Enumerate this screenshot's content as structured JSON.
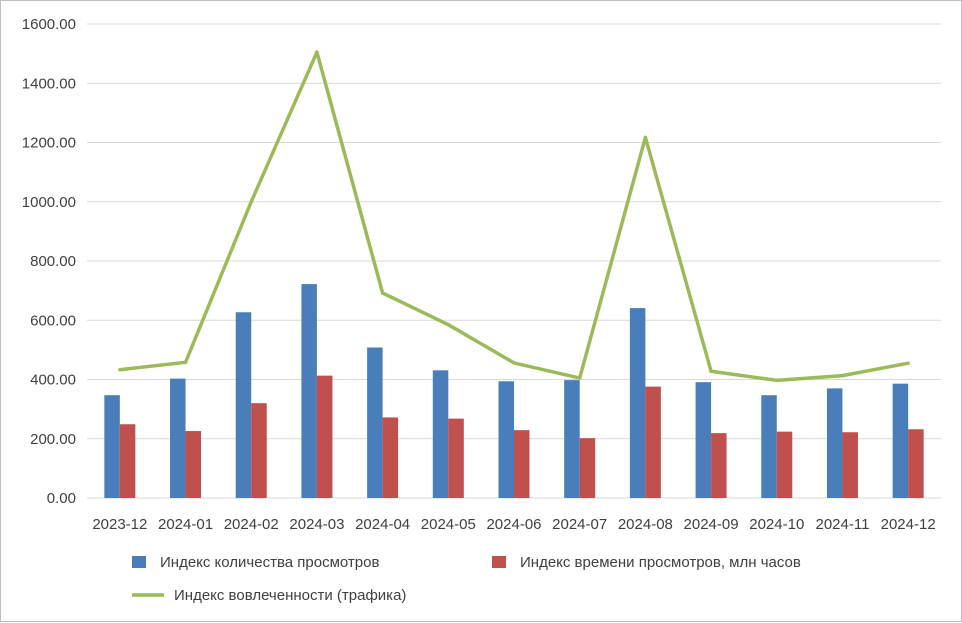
{
  "chart_data": {
    "type": "bar",
    "categories": [
      "2023-12",
      "2024-01",
      "2024-02",
      "2024-03",
      "2024-04",
      "2024-05",
      "2024-06",
      "2024-07",
      "2024-08",
      "2024-09",
      "2024-10",
      "2024-11",
      "2024-12"
    ],
    "series": [
      {
        "name": "Индекс количества просмотров",
        "type": "bar",
        "color": "#4a7ebb",
        "values": [
          347,
          403,
          627,
          722,
          508,
          431,
          394,
          398,
          641,
          391,
          347,
          370,
          386
        ]
      },
      {
        "name": "Индекс времени просмотров, млн часов",
        "type": "bar",
        "color": "#c0504d",
        "values": [
          249,
          226,
          320,
          413,
          272,
          268,
          229,
          202,
          376,
          219,
          224,
          222,
          232
        ]
      },
      {
        "name": "Индекс вовлеченности (трафика)",
        "type": "line",
        "color": "#9bbb59",
        "values": [
          433,
          458,
          1000,
          1505,
          692,
          585,
          456,
          405,
          1217,
          428,
          397,
          413,
          455
        ]
      }
    ],
    "ylim": [
      0,
      1600
    ],
    "yticks": [
      "0.00",
      "200.00",
      "400.00",
      "600.00",
      "800.00",
      "1000.00",
      "1200.00",
      "1400.00",
      "1600.00"
    ],
    "grid": true,
    "legend": "bottom"
  }
}
